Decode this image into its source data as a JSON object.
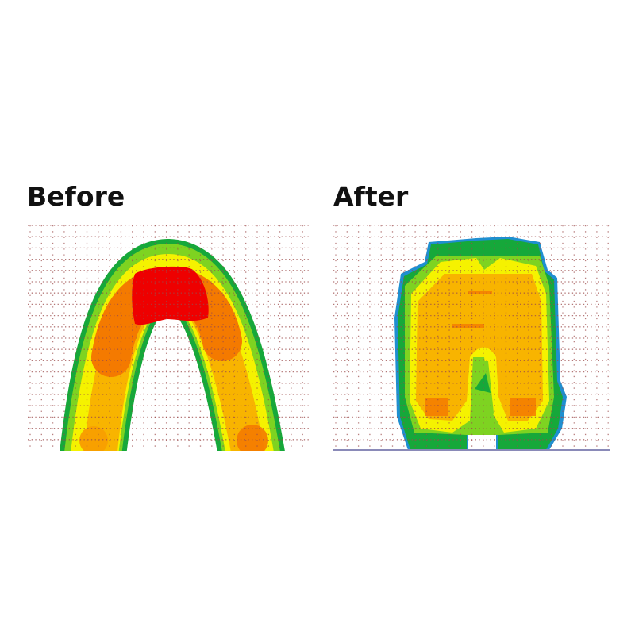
{
  "panels": {
    "before": {
      "label": "Before"
    },
    "after": {
      "label": "After"
    }
  },
  "colors": {
    "blue": "#1f8fd0",
    "green": "#16a83a",
    "light_green": "#7ed321",
    "yellow": "#f5f200",
    "gold": "#f8b400",
    "orange": "#f47a00",
    "red": "#ee0000",
    "grid": "#9b4a4a"
  }
}
